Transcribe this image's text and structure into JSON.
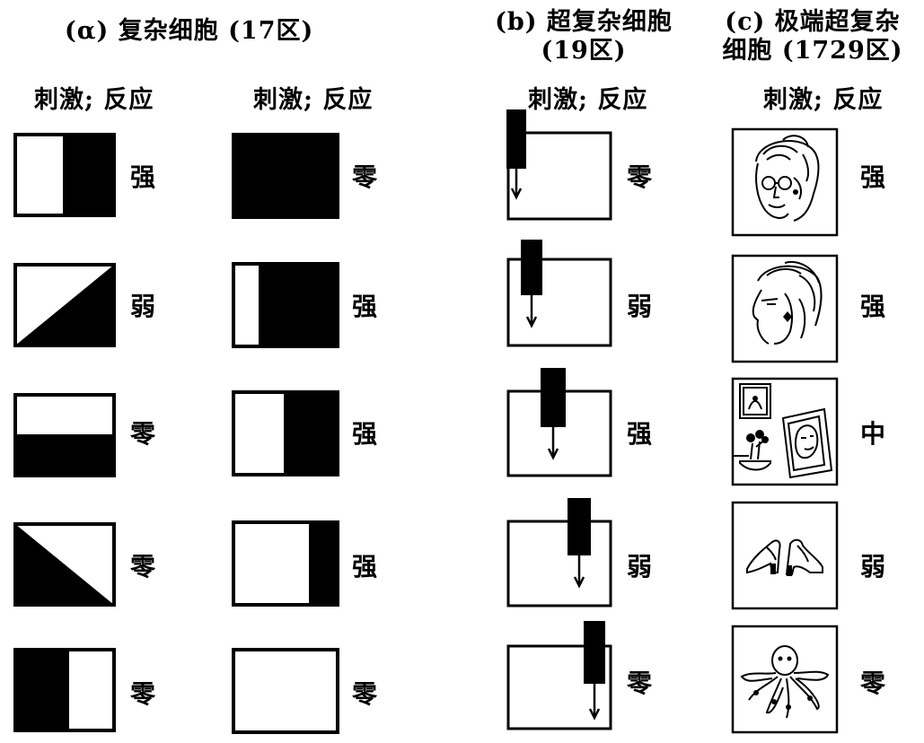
{
  "headings": {
    "a": "(α) 复杂细胞 (17区)",
    "b_line1": "(b) 超复杂细胞",
    "b_line2": "(19区)",
    "c_line1": "(c) 极端超复杂",
    "c_line2": "细胞 (1729区)"
  },
  "column_header": "刺激; 反应",
  "columns": {
    "a1": [
      "强",
      "弱",
      "零",
      "零",
      "零"
    ],
    "a2": [
      "零",
      "强",
      "强",
      "强",
      "零"
    ],
    "b": [
      "零",
      "弱",
      "强",
      "弱",
      "零"
    ],
    "c": [
      "强",
      "强",
      "中",
      "弱",
      "零"
    ]
  },
  "stimuli": {
    "a1": [
      "split-white-left-black-right",
      "diagonal-black-lower-right",
      "black-lower-half",
      "diagonal-black-lower-left",
      "black-left-third"
    ],
    "a2": [
      "all-black",
      "narrow-white-left-black-right",
      "white-left-black-right",
      "black-right-quarter",
      "all-white"
    ],
    "b": [
      "moving-bar-offset-0",
      "moving-bar-offset-1",
      "moving-bar-offset-2",
      "moving-bar-offset-3",
      "moving-bar-offset-4"
    ],
    "c": [
      "grandmother-face-front-icon",
      "grandmother-face-profile-icon",
      "room-with-portrait-and-flowers-icon",
      "pair-of-shoes-icon",
      "octopus-icon"
    ]
  }
}
